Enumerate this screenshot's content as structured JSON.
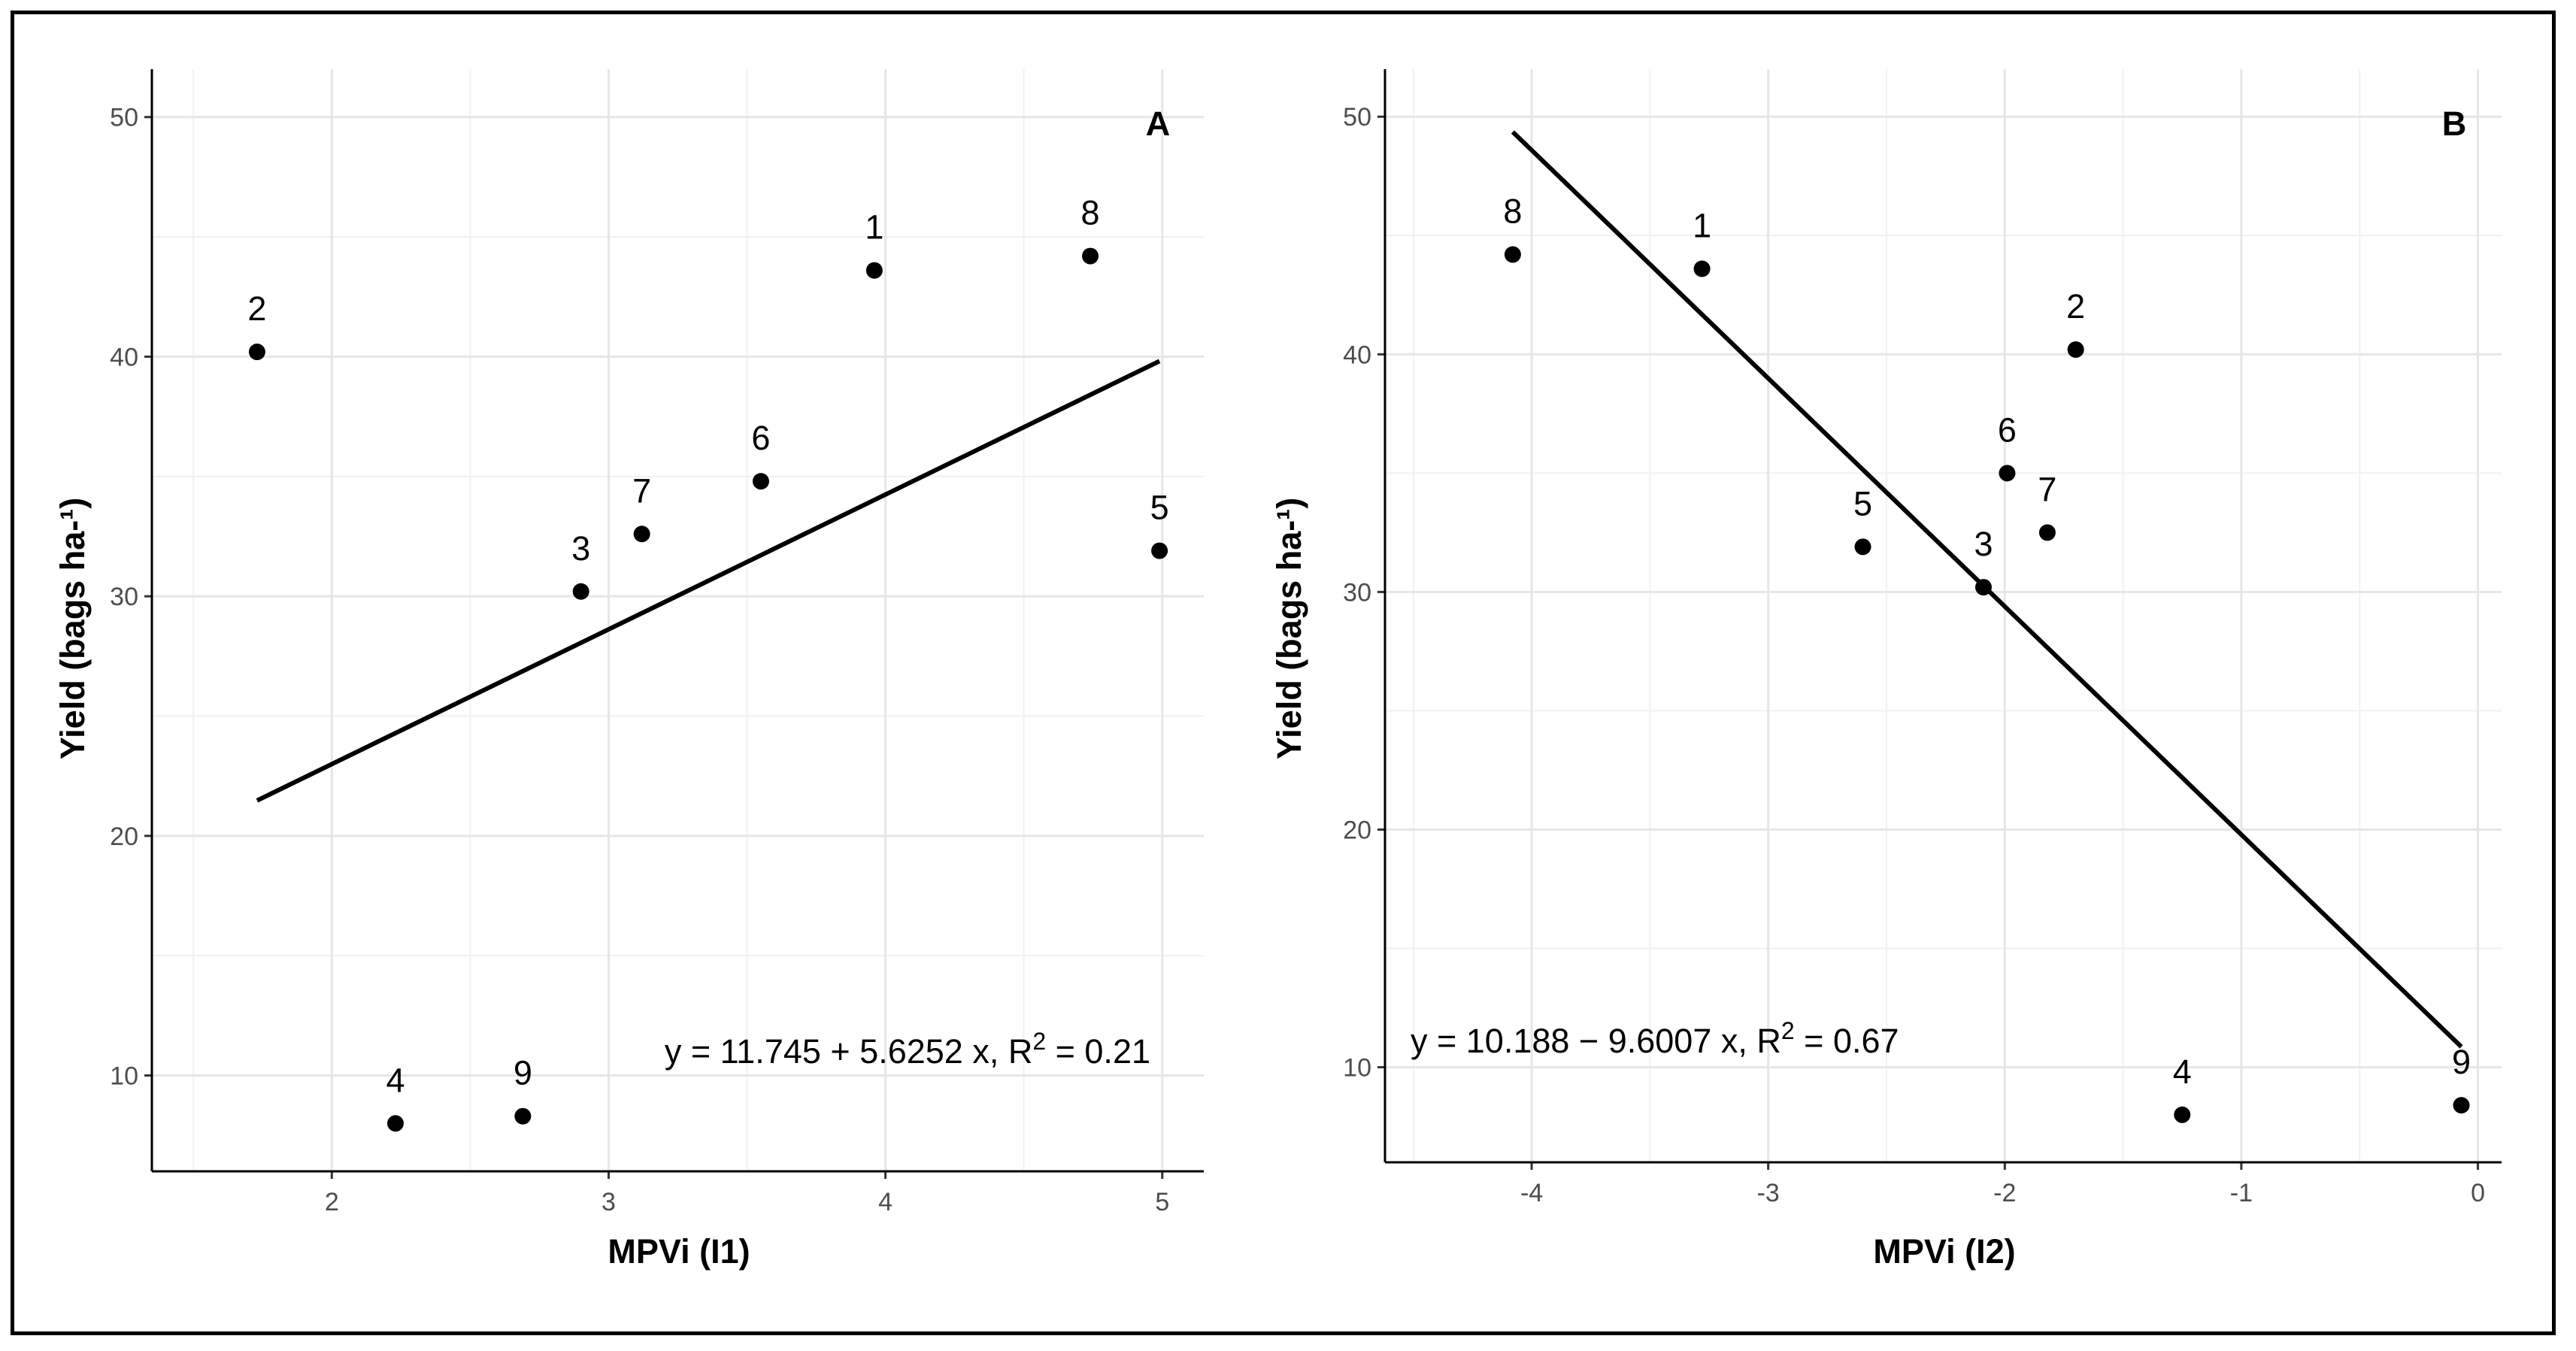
{
  "chart_data": [
    {
      "type": "scatter",
      "panel_label": "A",
      "xlabel": "MPVi (I1)",
      "ylabel": "Yield (bags ha-¹)",
      "xlim": [
        1.35,
        5.15
      ],
      "ylim": [
        6,
        52
      ],
      "x_ticks": [
        2,
        3,
        4,
        5
      ],
      "y_ticks": [
        10,
        20,
        30,
        40,
        50
      ],
      "grid": true,
      "points": [
        {
          "label": "1",
          "x": 3.96,
          "y": 43.6
        },
        {
          "label": "2",
          "x": 1.73,
          "y": 40.2
        },
        {
          "label": "3",
          "x": 2.9,
          "y": 30.2
        },
        {
          "label": "4",
          "x": 2.23,
          "y": 8.0
        },
        {
          "label": "5",
          "x": 4.99,
          "y": 31.9
        },
        {
          "label": "6",
          "x": 3.55,
          "y": 34.8
        },
        {
          "label": "7",
          "x": 3.12,
          "y": 32.6
        },
        {
          "label": "8",
          "x": 4.74,
          "y": 44.2
        },
        {
          "label": "9",
          "x": 2.69,
          "y": 8.3
        }
      ],
      "regression": {
        "intercept": 11.745,
        "slope": 5.6252,
        "x_range": [
          1.73,
          4.99
        ]
      },
      "equation": {
        "prefix": "y = 11.745 + 5.6252 x,  R",
        "sup": "2",
        "suffix": " = 0.21"
      }
    },
    {
      "type": "scatter",
      "panel_label": "B",
      "xlabel": "MPVi (I2)",
      "ylabel": "Yield (bags ha-¹)",
      "xlim": [
        -4.62,
        0.1
      ],
      "ylim": [
        6,
        52
      ],
      "x_ticks": [
        -4,
        -3,
        -2,
        -1,
        0
      ],
      "y_ticks": [
        10,
        20,
        30,
        40,
        50
      ],
      "grid": true,
      "points": [
        {
          "label": "1",
          "x": -3.28,
          "y": 43.6
        },
        {
          "label": "2",
          "x": -1.7,
          "y": 40.2
        },
        {
          "label": "3",
          "x": -2.09,
          "y": 30.2
        },
        {
          "label": "4",
          "x": -1.25,
          "y": 8.0
        },
        {
          "label": "5",
          "x": -2.6,
          "y": 31.9
        },
        {
          "label": "6",
          "x": -1.99,
          "y": 35.0
        },
        {
          "label": "7",
          "x": -1.82,
          "y": 32.5
        },
        {
          "label": "8",
          "x": -4.08,
          "y": 44.2
        },
        {
          "label": "9",
          "x": -0.07,
          "y": 8.4
        }
      ],
      "regression": {
        "intercept": 10.188,
        "slope": -9.6007,
        "x_range": [
          -4.08,
          -0.07
        ]
      },
      "equation": {
        "prefix": "y = 10.188 − 9.6007 x,  R",
        "sup": "2",
        "suffix": " = 0.67"
      }
    }
  ]
}
